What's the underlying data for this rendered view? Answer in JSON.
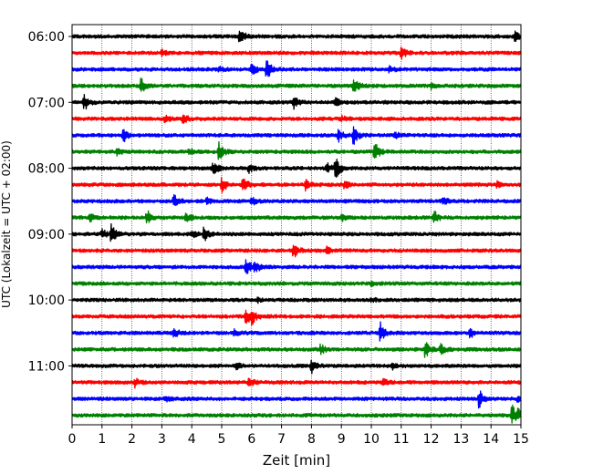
{
  "chart_data": {
    "type": "line",
    "title": "",
    "xlabel": "Zeit  [min]",
    "ylabel": "UTC (Lokalzeit = UTC + 02:00)",
    "xlim": [
      0,
      15
    ],
    "x_ticks": [
      "0",
      "1",
      "2",
      "3",
      "4",
      "5",
      "6",
      "7",
      "8",
      "9",
      "10",
      "11",
      "12",
      "13",
      "14",
      "15"
    ],
    "y_ticks": [
      "06:00",
      "07:00",
      "08:00",
      "09:00",
      "10:00",
      "11:00"
    ],
    "grid": "vertical dotted at each minute",
    "trace_minutes_per_row": 15,
    "series_colors": [
      "#000000",
      "#ff0000",
      "#0000ff",
      "#008000"
    ],
    "rows": [
      {
        "start": "06:00",
        "color": "#000000",
        "events": [
          [
            5.6,
            2.0
          ],
          [
            14.8,
            0.9
          ]
        ]
      },
      {
        "start": "06:15",
        "color": "#ff0000",
        "events": [
          [
            11.0,
            1.3
          ],
          [
            3.0,
            0.5
          ]
        ]
      },
      {
        "start": "06:30",
        "color": "#0000ff",
        "events": [
          [
            6.5,
            2.2
          ],
          [
            6.0,
            1.1
          ],
          [
            10.6,
            0.6
          ],
          [
            4.9,
            0.6
          ]
        ]
      },
      {
        "start": "06:45",
        "color": "#008000",
        "events": [
          [
            2.3,
            1.5
          ],
          [
            9.4,
            1.8
          ],
          [
            12.0,
            0.6
          ]
        ]
      },
      {
        "start": "07:00",
        "color": "#000000",
        "events": [
          [
            0.4,
            1.8
          ],
          [
            7.4,
            1.5
          ],
          [
            8.8,
            0.8
          ]
        ]
      },
      {
        "start": "07:15",
        "color": "#ff0000",
        "events": [
          [
            3.7,
            1.1
          ],
          [
            3.1,
            0.6
          ],
          [
            9.0,
            0.5
          ]
        ]
      },
      {
        "start": "07:30",
        "color": "#0000ff",
        "events": [
          [
            1.7,
            1.5
          ],
          [
            9.4,
            2.0
          ],
          [
            8.9,
            1.3
          ],
          [
            10.8,
            0.6
          ]
        ]
      },
      {
        "start": "07:45",
        "color": "#008000",
        "events": [
          [
            4.9,
            2.0
          ],
          [
            10.1,
            2.2
          ],
          [
            3.9,
            0.7
          ],
          [
            1.5,
            0.7
          ]
        ]
      },
      {
        "start": "08:00",
        "color": "#000000",
        "events": [
          [
            8.8,
            2.2
          ],
          [
            4.7,
            1.5
          ],
          [
            5.9,
            0.8
          ],
          [
            8.5,
            1.2
          ]
        ]
      },
      {
        "start": "08:15",
        "color": "#ff0000",
        "events": [
          [
            5.0,
            1.8
          ],
          [
            5.7,
            1.8
          ],
          [
            7.8,
            1.0
          ],
          [
            9.1,
            0.8
          ],
          [
            14.2,
            0.5
          ]
        ]
      },
      {
        "start": "08:30",
        "color": "#0000ff",
        "events": [
          [
            3.4,
            1.5
          ],
          [
            6.0,
            0.8
          ],
          [
            12.4,
            0.7
          ],
          [
            4.5,
            0.6
          ]
        ]
      },
      {
        "start": "08:45",
        "color": "#008000",
        "events": [
          [
            2.5,
            1.5
          ],
          [
            3.8,
            1.0
          ],
          [
            12.1,
            1.3
          ],
          [
            9.0,
            0.6
          ],
          [
            0.6,
            0.7
          ]
        ]
      },
      {
        "start": "09:00",
        "color": "#000000",
        "events": [
          [
            1.3,
            2.2
          ],
          [
            1.0,
            1.0
          ],
          [
            4.4,
            1.5
          ],
          [
            4.0,
            0.6
          ]
        ]
      },
      {
        "start": "09:15",
        "color": "#ff0000",
        "events": [
          [
            7.4,
            1.8
          ],
          [
            8.5,
            0.6
          ]
        ]
      },
      {
        "start": "09:30",
        "color": "#0000ff",
        "events": [
          [
            5.8,
            2.2
          ],
          [
            6.1,
            1.3
          ]
        ]
      },
      {
        "start": "09:45",
        "color": "#008000",
        "events": [
          [
            10.0,
            0.4
          ]
        ]
      },
      {
        "start": "10:00",
        "color": "#000000",
        "events": [
          [
            10.0,
            0.4
          ],
          [
            6.2,
            0.4
          ]
        ]
      },
      {
        "start": "10:15",
        "color": "#ff0000",
        "events": [
          [
            5.8,
            2.0
          ],
          [
            6.0,
            1.3
          ]
        ]
      },
      {
        "start": "10:30",
        "color": "#0000ff",
        "events": [
          [
            10.3,
            2.0
          ],
          [
            3.4,
            1.0
          ],
          [
            13.3,
            1.0
          ],
          [
            5.4,
            0.6
          ]
        ]
      },
      {
        "start": "10:45",
        "color": "#008000",
        "events": [
          [
            11.8,
            1.8
          ],
          [
            12.3,
            1.2
          ],
          [
            8.3,
            1.0
          ]
        ]
      },
      {
        "start": "11:00",
        "color": "#000000",
        "events": [
          [
            8.0,
            1.3
          ],
          [
            5.5,
            0.6
          ],
          [
            10.7,
            0.6
          ]
        ]
      },
      {
        "start": "11:15",
        "color": "#ff0000",
        "events": [
          [
            5.9,
            1.1
          ],
          [
            2.1,
            0.8
          ],
          [
            10.4,
            0.6
          ]
        ]
      },
      {
        "start": "11:30",
        "color": "#0000ff",
        "events": [
          [
            13.6,
            2.2
          ],
          [
            3.1,
            0.6
          ],
          [
            14.9,
            0.7
          ]
        ]
      },
      {
        "start": "11:45",
        "color": "#008000",
        "events": [
          [
            14.7,
            2.2
          ],
          [
            14.9,
            1.0
          ]
        ]
      }
    ]
  }
}
